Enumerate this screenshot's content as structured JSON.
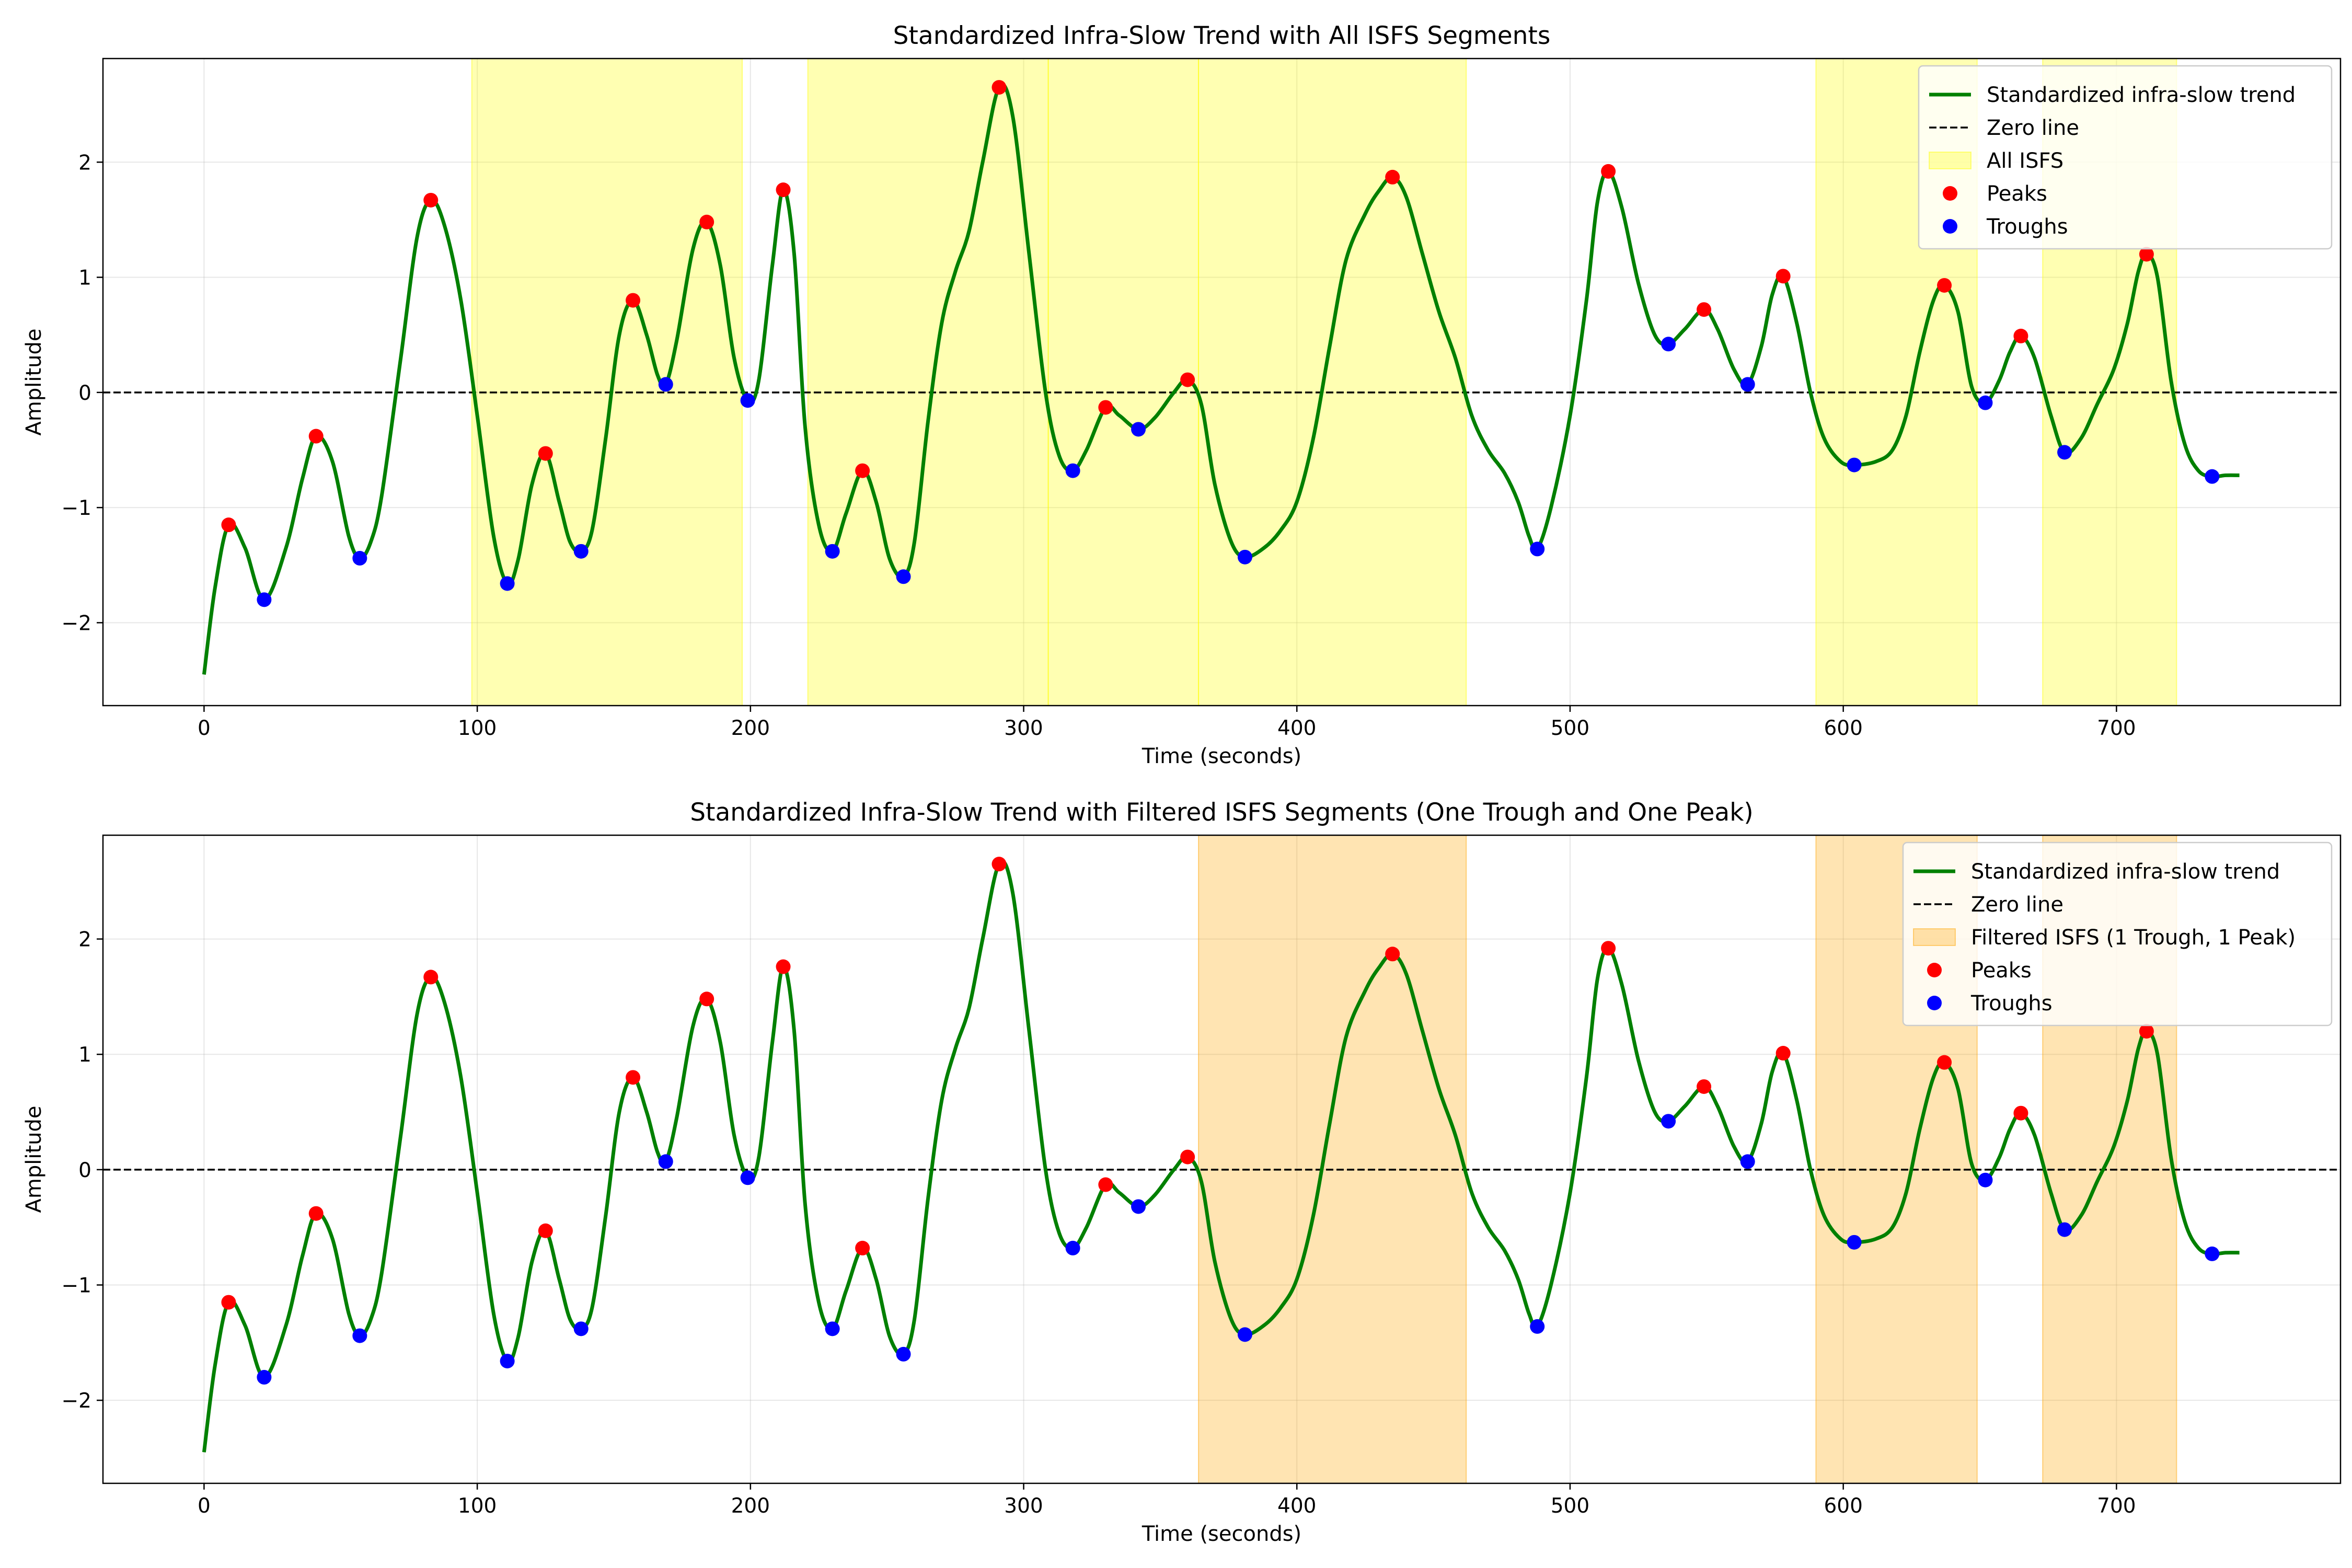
{
  "chart_data": [
    {
      "type": "line",
      "title": "Standardized Infra-Slow Trend with All ISFS Segments",
      "xlabel": "Time (seconds)",
      "ylabel": "Amplitude",
      "xlim": [
        -37,
        782
      ],
      "ylim": [
        -2.72,
        2.9
      ],
      "xticks": [
        0,
        100,
        200,
        300,
        400,
        500,
        600,
        700
      ],
      "yticks": [
        -2,
        -1,
        0,
        1,
        2
      ],
      "xtick_labels": [
        "0",
        "100",
        "200",
        "300",
        "400",
        "500",
        "600",
        "700"
      ],
      "ytick_labels": [
        "−2",
        "−1",
        "0",
        "1",
        "2"
      ],
      "grid": true,
      "legend_position": "top-right",
      "shade_color": "#ffff00",
      "shade_alpha": 0.3,
      "segments": [
        [
          98,
          197
        ],
        [
          221,
          309
        ],
        [
          309,
          364
        ],
        [
          364,
          462
        ],
        [
          590,
          649
        ],
        [
          673,
          722
        ]
      ],
      "legend": {
        "trend": "Standardized infra-slow trend",
        "zero": "Zero line",
        "shade": "All ISFS",
        "peaks": "Peaks",
        "troughs": "Troughs"
      }
    },
    {
      "type": "line",
      "title": "Standardized Infra-Slow Trend with Filtered ISFS Segments (One Trough and One Peak)",
      "xlabel": "Time (seconds)",
      "ylabel": "Amplitude",
      "xlim": [
        -37,
        782
      ],
      "ylim": [
        -2.72,
        2.9
      ],
      "xticks": [
        0,
        100,
        200,
        300,
        400,
        500,
        600,
        700
      ],
      "yticks": [
        -2,
        -1,
        0,
        1,
        2
      ],
      "xtick_labels": [
        "0",
        "100",
        "200",
        "300",
        "400",
        "500",
        "600",
        "700"
      ],
      "ytick_labels": [
        "−2",
        "−1",
        "0",
        "1",
        "2"
      ],
      "grid": true,
      "legend_position": "top-right",
      "shade_color": "#ffa500",
      "shade_alpha": 0.3,
      "segments": [
        [
          364,
          462
        ],
        [
          590,
          649
        ],
        [
          673,
          722
        ]
      ],
      "legend": {
        "trend": "Standardized infra-slow trend",
        "zero": "Zero line",
        "shade": "Filtered ISFS (1 Trough, 1 Peak)",
        "peaks": "Peaks",
        "troughs": "Troughs"
      }
    }
  ],
  "series": {
    "trend_color": "#008000",
    "peak_color": "#ff0000",
    "trough_color": "#0000ff",
    "trend": [
      [
        0,
        -2.45
      ],
      [
        4,
        -1.7
      ],
      [
        9,
        -1.15
      ],
      [
        15,
        -1.35
      ],
      [
        22,
        -1.8
      ],
      [
        30,
        -1.35
      ],
      [
        36,
        -0.75
      ],
      [
        41,
        -0.38
      ],
      [
        47,
        -0.6
      ],
      [
        53,
        -1.25
      ],
      [
        57,
        -1.44
      ],
      [
        61,
        -1.3
      ],
      [
        65,
        -0.9
      ],
      [
        72,
        0.3
      ],
      [
        78,
        1.35
      ],
      [
        83,
        1.67
      ],
      [
        88,
        1.45
      ],
      [
        94,
        0.8
      ],
      [
        100,
        -0.2
      ],
      [
        106,
        -1.25
      ],
      [
        111,
        -1.66
      ],
      [
        115,
        -1.45
      ],
      [
        120,
        -0.8
      ],
      [
        125,
        -0.53
      ],
      [
        130,
        -0.95
      ],
      [
        134,
        -1.3
      ],
      [
        138,
        -1.38
      ],
      [
        142,
        -1.2
      ],
      [
        147,
        -0.4
      ],
      [
        152,
        0.5
      ],
      [
        157,
        0.8
      ],
      [
        162,
        0.5
      ],
      [
        166,
        0.15
      ],
      [
        169,
        0.07
      ],
      [
        173,
        0.45
      ],
      [
        179,
        1.25
      ],
      [
        184,
        1.48
      ],
      [
        189,
        1.1
      ],
      [
        194,
        0.3
      ],
      [
        199,
        -0.07
      ],
      [
        203,
        0.1
      ],
      [
        208,
        1.1
      ],
      [
        212,
        1.76
      ],
      [
        216,
        1.2
      ],
      [
        220,
        -0.3
      ],
      [
        225,
        -1.15
      ],
      [
        230,
        -1.38
      ],
      [
        235,
        -1.05
      ],
      [
        241,
        -0.68
      ],
      [
        246,
        -0.95
      ],
      [
        251,
        -1.45
      ],
      [
        256,
        -1.6
      ],
      [
        260,
        -1.3
      ],
      [
        265,
        -0.25
      ],
      [
        270,
        0.6
      ],
      [
        275,
        1.05
      ],
      [
        280,
        1.4
      ],
      [
        285,
        2.0
      ],
      [
        291,
        2.65
      ],
      [
        296,
        2.4
      ],
      [
        302,
        1.2
      ],
      [
        308,
        0.0
      ],
      [
        313,
        -0.55
      ],
      [
        318,
        -0.68
      ],
      [
        323,
        -0.5
      ],
      [
        330,
        -0.13
      ],
      [
        335,
        -0.2
      ],
      [
        342,
        -0.32
      ],
      [
        348,
        -0.22
      ],
      [
        355,
        0.0
      ],
      [
        360,
        0.11
      ],
      [
        365,
        -0.1
      ],
      [
        370,
        -0.8
      ],
      [
        376,
        -1.3
      ],
      [
        381,
        -1.43
      ],
      [
        388,
        -1.35
      ],
      [
        394,
        -1.2
      ],
      [
        400,
        -0.95
      ],
      [
        406,
        -0.4
      ],
      [
        412,
        0.4
      ],
      [
        418,
        1.15
      ],
      [
        425,
        1.55
      ],
      [
        430,
        1.75
      ],
      [
        435,
        1.87
      ],
      [
        440,
        1.7
      ],
      [
        446,
        1.2
      ],
      [
        452,
        0.7
      ],
      [
        458,
        0.3
      ],
      [
        464,
        -0.2
      ],
      [
        470,
        -0.5
      ],
      [
        476,
        -0.7
      ],
      [
        481,
        -0.95
      ],
      [
        485,
        -1.25
      ],
      [
        488,
        -1.36
      ],
      [
        493,
        -1.0
      ],
      [
        500,
        -0.2
      ],
      [
        506,
        0.8
      ],
      [
        510,
        1.65
      ],
      [
        514,
        1.92
      ],
      [
        519,
        1.6
      ],
      [
        525,
        0.95
      ],
      [
        531,
        0.5
      ],
      [
        536,
        0.42
      ],
      [
        542,
        0.55
      ],
      [
        549,
        0.72
      ],
      [
        554,
        0.55
      ],
      [
        560,
        0.2
      ],
      [
        565,
        0.07
      ],
      [
        570,
        0.4
      ],
      [
        574,
        0.85
      ],
      [
        578,
        1.01
      ],
      [
        583,
        0.6
      ],
      [
        588,
        0.0
      ],
      [
        593,
        -0.4
      ],
      [
        599,
        -0.6
      ],
      [
        604,
        -0.63
      ],
      [
        612,
        -0.6
      ],
      [
        618,
        -0.5
      ],
      [
        623,
        -0.2
      ],
      [
        628,
        0.35
      ],
      [
        633,
        0.8
      ],
      [
        637,
        0.93
      ],
      [
        642,
        0.7
      ],
      [
        647,
        0.05
      ],
      [
        652,
        -0.09
      ],
      [
        657,
        0.1
      ],
      [
        661,
        0.35
      ],
      [
        665,
        0.49
      ],
      [
        670,
        0.3
      ],
      [
        676,
        -0.2
      ],
      [
        681,
        -0.52
      ],
      [
        687,
        -0.4
      ],
      [
        693,
        -0.1
      ],
      [
        699,
        0.2
      ],
      [
        704,
        0.6
      ],
      [
        708,
        1.05
      ],
      [
        711,
        1.2
      ],
      [
        715,
        1.0
      ],
      [
        720,
        0.1
      ],
      [
        725,
        -0.45
      ],
      [
        730,
        -0.68
      ],
      [
        735,
        -0.73
      ],
      [
        740,
        -0.72
      ],
      [
        745,
        -0.72
      ]
    ],
    "peaks": [
      [
        9,
        -1.15
      ],
      [
        41,
        -0.38
      ],
      [
        83,
        1.67
      ],
      [
        125,
        -0.53
      ],
      [
        157,
        0.8
      ],
      [
        184,
        1.48
      ],
      [
        212,
        1.76
      ],
      [
        241,
        -0.68
      ],
      [
        291,
        2.65
      ],
      [
        330,
        -0.13
      ],
      [
        360,
        0.11
      ],
      [
        435,
        1.87
      ],
      [
        514,
        1.92
      ],
      [
        549,
        0.72
      ],
      [
        578,
        1.01
      ],
      [
        637,
        0.93
      ],
      [
        665,
        0.49
      ],
      [
        711,
        1.2
      ]
    ],
    "troughs": [
      [
        22,
        -1.8
      ],
      [
        57,
        -1.44
      ],
      [
        111,
        -1.66
      ],
      [
        138,
        -1.38
      ],
      [
        169,
        0.07
      ],
      [
        199,
        -0.07
      ],
      [
        230,
        -1.38
      ],
      [
        256,
        -1.6
      ],
      [
        318,
        -0.68
      ],
      [
        342,
        -0.32
      ],
      [
        381,
        -1.43
      ],
      [
        488,
        -1.36
      ],
      [
        536,
        0.42
      ],
      [
        565,
        0.07
      ],
      [
        604,
        -0.63
      ],
      [
        652,
        -0.09
      ],
      [
        681,
        -0.52
      ],
      [
        735,
        -0.73
      ]
    ]
  }
}
